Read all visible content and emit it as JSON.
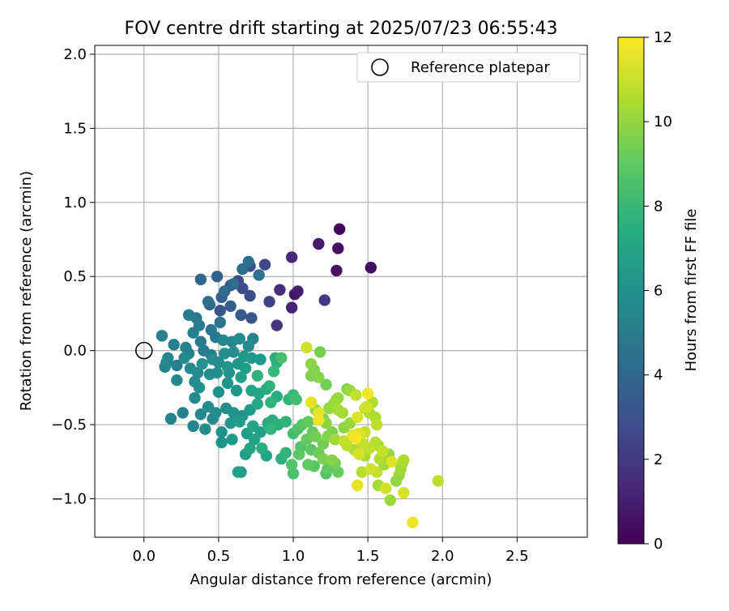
{
  "chart_data": {
    "type": "scatter",
    "title": "FOV centre drift starting at 2025/07/23 06:55:43",
    "xlabel": "Angular distance from reference (arcmin)",
    "ylabel": "Rotation from reference (arcmin)",
    "xlim": [
      -0.33,
      2.97
    ],
    "ylim": [
      -1.26,
      2.06
    ],
    "xticks": [
      "0.0",
      "0.5",
      "1.0",
      "1.5",
      "2.0",
      "2.5"
    ],
    "xtick_values": [
      0,
      0.5,
      1.0,
      1.5,
      2.0,
      2.5
    ],
    "yticks": [
      "−1.0",
      "−0.5",
      "0.0",
      "0.5",
      "1.0",
      "1.5",
      "2.0"
    ],
    "ytick_values": [
      -1.0,
      -0.5,
      0,
      0.5,
      1.0,
      1.5,
      2.0
    ],
    "grid": true,
    "legend": {
      "position": "top-right",
      "entries": [
        "Reference platepar"
      ]
    },
    "reference_point": {
      "x": 0.0,
      "y": 0.0
    },
    "colorbar": {
      "label": "Hours from first FF file",
      "colormap": "viridis",
      "range": [
        0,
        12
      ],
      "ticks": [
        "0",
        "2",
        "4",
        "6",
        "8",
        "10",
        "12"
      ],
      "tick_values": [
        0,
        2,
        4,
        6,
        8,
        10,
        12
      ]
    },
    "points": [
      {
        "x": 1.31,
        "y": 0.82,
        "h": 0.2
      },
      {
        "x": 1.3,
        "y": 0.69,
        "h": 0.5
      },
      {
        "x": 1.29,
        "y": 0.54,
        "h": 0.6
      },
      {
        "x": 1.52,
        "y": 0.56,
        "h": 0.4
      },
      {
        "x": 1.17,
        "y": 0.72,
        "h": 0.9
      },
      {
        "x": 1.03,
        "y": 0.4,
        "h": 1.0
      },
      {
        "x": 1.01,
        "y": 0.38,
        "h": 0.7
      },
      {
        "x": 0.99,
        "y": 0.29,
        "h": 1.1
      },
      {
        "x": 0.99,
        "y": 0.63,
        "h": 1.4
      },
      {
        "x": 0.91,
        "y": 0.41,
        "h": 1.6
      },
      {
        "x": 0.89,
        "y": 0.17,
        "h": 1.8
      },
      {
        "x": 1.21,
        "y": 0.34,
        "h": 2.0
      },
      {
        "x": 0.84,
        "y": 0.33,
        "h": 2.3
      },
      {
        "x": 0.81,
        "y": 0.58,
        "h": 2.5
      },
      {
        "x": 0.71,
        "y": 0.57,
        "h": 2.9
      },
      {
        "x": 0.71,
        "y": 0.37,
        "h": 2.7
      },
      {
        "x": 0.63,
        "y": 0.47,
        "h": 2.6
      },
      {
        "x": 0.58,
        "y": 0.44,
        "h": 3.0
      },
      {
        "x": 0.66,
        "y": 0.42,
        "h": 2.8
      },
      {
        "x": 0.72,
        "y": 0.22,
        "h": 3.2
      },
      {
        "x": 0.65,
        "y": 0.24,
        "h": 3.4
      },
      {
        "x": 0.51,
        "y": 0.27,
        "h": 3.1
      },
      {
        "x": 0.58,
        "y": 0.3,
        "h": 3.5
      },
      {
        "x": 0.52,
        "y": 0.36,
        "h": 3.6
      },
      {
        "x": 0.49,
        "y": 0.5,
        "h": 3.8
      },
      {
        "x": 0.44,
        "y": 0.31,
        "h": 3.9
      },
      {
        "x": 0.38,
        "y": 0.48,
        "h": 4.0
      },
      {
        "x": 0.54,
        "y": 0.4,
        "h": 4.1
      },
      {
        "x": 0.6,
        "y": 0.45,
        "h": 4.2
      },
      {
        "x": 0.66,
        "y": 0.55,
        "h": 4.3
      },
      {
        "x": 0.7,
        "y": 0.6,
        "h": 4.4
      },
      {
        "x": 0.77,
        "y": 0.51,
        "h": 4.5
      },
      {
        "x": 0.51,
        "y": 0.19,
        "h": 4.6
      },
      {
        "x": 0.45,
        "y": 0.14,
        "h": 4.7
      },
      {
        "x": 0.43,
        "y": 0.33,
        "h": 4.4
      },
      {
        "x": 0.35,
        "y": 0.22,
        "h": 4.9
      },
      {
        "x": 0.3,
        "y": 0.24,
        "h": 5.0
      },
      {
        "x": 0.37,
        "y": 0.17,
        "h": 5.1
      },
      {
        "x": 0.33,
        "y": 0.12,
        "h": 5.2
      },
      {
        "x": 0.12,
        "y": 0.1,
        "h": 5.3
      },
      {
        "x": 0.2,
        "y": 0.04,
        "h": 5.1
      },
      {
        "x": 0.28,
        "y": 0.02,
        "h": 5.4
      },
      {
        "x": 0.38,
        "y": 0.06,
        "h": 5.0
      },
      {
        "x": 0.48,
        "y": 0.09,
        "h": 4.8
      },
      {
        "x": 0.53,
        "y": 0.07,
        "h": 5.6
      },
      {
        "x": 0.59,
        "y": 0.06,
        "h": 5.5
      },
      {
        "x": 0.64,
        "y": 0.08,
        "h": 5.7
      },
      {
        "x": 0.73,
        "y": 0.08,
        "h": 5.4
      },
      {
        "x": 0.7,
        "y": 0.03,
        "h": 5.8
      },
      {
        "x": 0.6,
        "y": -0.01,
        "h": 5.9
      },
      {
        "x": 0.54,
        "y": -0.02,
        "h": 6.0
      },
      {
        "x": 0.45,
        "y": -0.03,
        "h": 5.2
      },
      {
        "x": 0.4,
        "y": 0.0,
        "h": 4.9
      },
      {
        "x": 0.3,
        "y": -0.02,
        "h": 5.3
      },
      {
        "x": 0.27,
        "y": -0.05,
        "h": 5.7
      },
      {
        "x": 0.16,
        "y": -0.05,
        "h": 5.5
      },
      {
        "x": 0.15,
        "y": -0.08,
        "h": 5.6
      },
      {
        "x": 0.14,
        "y": -0.11,
        "h": 5.4
      },
      {
        "x": 0.22,
        "y": -0.1,
        "h": 5.2
      },
      {
        "x": 0.31,
        "y": -0.12,
        "h": 5.8
      },
      {
        "x": 0.39,
        "y": -0.09,
        "h": 6.1
      },
      {
        "x": 0.46,
        "y": -0.06,
        "h": 6.0
      },
      {
        "x": 0.5,
        "y": -0.08,
        "h": 5.9
      },
      {
        "x": 0.56,
        "y": -0.11,
        "h": 6.2
      },
      {
        "x": 0.63,
        "y": -0.09,
        "h": 6.3
      },
      {
        "x": 0.67,
        "y": -0.04,
        "h": 6.4
      },
      {
        "x": 0.72,
        "y": -0.05,
        "h": 6.3
      },
      {
        "x": 0.78,
        "y": -0.06,
        "h": 6.5
      },
      {
        "x": 0.88,
        "y": -0.05,
        "h": 7.5
      },
      {
        "x": 0.89,
        "y": -0.08,
        "h": 7.6
      },
      {
        "x": 0.87,
        "y": -0.14,
        "h": 8.0
      },
      {
        "x": 0.76,
        "y": -0.17,
        "h": 7.7
      },
      {
        "x": 0.68,
        "y": -0.12,
        "h": 6.6
      },
      {
        "x": 0.65,
        "y": -0.18,
        "h": 6.7
      },
      {
        "x": 0.57,
        "y": -0.15,
        "h": 6.1
      },
      {
        "x": 0.49,
        "y": -0.15,
        "h": 6.0
      },
      {
        "x": 0.44,
        "y": -0.16,
        "h": 5.9
      },
      {
        "x": 0.36,
        "y": -0.15,
        "h": 5.6
      },
      {
        "x": 0.34,
        "y": -0.21,
        "h": 5.8
      },
      {
        "x": 0.22,
        "y": -0.2,
        "h": 5.5
      },
      {
        "x": 0.37,
        "y": -0.25,
        "h": 6.0
      },
      {
        "x": 0.56,
        "y": -0.22,
        "h": 6.2
      },
      {
        "x": 0.62,
        "y": -0.27,
        "h": 6.4
      },
      {
        "x": 0.5,
        "y": -0.28,
        "h": 6.1
      },
      {
        "x": 0.34,
        "y": -0.32,
        "h": 5.7
      },
      {
        "x": 0.72,
        "y": -0.27,
        "h": 7.0
      },
      {
        "x": 0.77,
        "y": -0.29,
        "h": 7.1
      },
      {
        "x": 0.82,
        "y": -0.26,
        "h": 7.3
      },
      {
        "x": 0.84,
        "y": -0.24,
        "h": 7.6
      },
      {
        "x": 0.76,
        "y": -0.36,
        "h": 7.2
      },
      {
        "x": 0.85,
        "y": -0.35,
        "h": 7.8
      },
      {
        "x": 0.89,
        "y": -0.31,
        "h": 7.4
      },
      {
        "x": 0.97,
        "y": -0.33,
        "h": 7.9
      },
      {
        "x": 1.0,
        "y": -0.3,
        "h": 8.1
      },
      {
        "x": 1.02,
        "y": -0.33,
        "h": 8.3
      },
      {
        "x": 0.43,
        "y": -0.38,
        "h": 5.8
      },
      {
        "x": 0.48,
        "y": -0.42,
        "h": 5.9
      },
      {
        "x": 0.55,
        "y": -0.39,
        "h": 6.0
      },
      {
        "x": 0.6,
        "y": -0.42,
        "h": 6.2
      },
      {
        "x": 0.66,
        "y": -0.44,
        "h": 6.1
      },
      {
        "x": 0.71,
        "y": -0.4,
        "h": 6.5
      },
      {
        "x": 0.64,
        "y": -0.48,
        "h": 6.6
      },
      {
        "x": 0.58,
        "y": -0.49,
        "h": 6.3
      },
      {
        "x": 0.46,
        "y": -0.46,
        "h": 5.7
      },
      {
        "x": 0.38,
        "y": -0.43,
        "h": 5.6
      },
      {
        "x": 0.33,
        "y": -0.51,
        "h": 5.5
      },
      {
        "x": 0.26,
        "y": -0.42,
        "h": 5.3
      },
      {
        "x": 0.18,
        "y": -0.46,
        "h": 5.4
      },
      {
        "x": 0.41,
        "y": -0.53,
        "h": 5.8
      },
      {
        "x": 0.52,
        "y": -0.55,
        "h": 6.0
      },
      {
        "x": 0.52,
        "y": -0.62,
        "h": 6.2
      },
      {
        "x": 0.59,
        "y": -0.6,
        "h": 6.4
      },
      {
        "x": 0.69,
        "y": -0.56,
        "h": 6.6
      },
      {
        "x": 0.73,
        "y": -0.51,
        "h": 7.0
      },
      {
        "x": 0.78,
        "y": -0.55,
        "h": 6.8
      },
      {
        "x": 0.83,
        "y": -0.49,
        "h": 7.2
      },
      {
        "x": 0.86,
        "y": -0.47,
        "h": 7.4
      },
      {
        "x": 0.9,
        "y": -0.5,
        "h": 7.6
      },
      {
        "x": 0.95,
        "y": -0.48,
        "h": 7.8
      },
      {
        "x": 0.74,
        "y": -0.6,
        "h": 6.9
      },
      {
        "x": 0.71,
        "y": -0.66,
        "h": 7.1
      },
      {
        "x": 0.79,
        "y": -0.66,
        "h": 7.3
      },
      {
        "x": 0.82,
        "y": -0.71,
        "h": 7.0
      },
      {
        "x": 0.68,
        "y": -0.7,
        "h": 6.8
      },
      {
        "x": 0.63,
        "y": -0.82,
        "h": 6.7
      },
      {
        "x": 0.65,
        "y": -0.82,
        "h": 6.5
      },
      {
        "x": 0.92,
        "y": -0.73,
        "h": 7.5
      },
      {
        "x": 0.95,
        "y": -0.69,
        "h": 7.8
      },
      {
        "x": 0.99,
        "y": -0.77,
        "h": 8.7
      },
      {
        "x": 1.0,
        "y": -0.83,
        "h": 8.5
      },
      {
        "x": 1.04,
        "y": -0.7,
        "h": 8.9
      },
      {
        "x": 1.0,
        "y": -0.56,
        "h": 8.3
      },
      {
        "x": 1.03,
        "y": -0.53,
        "h": 8.6
      },
      {
        "x": 1.06,
        "y": -0.5,
        "h": 8.8
      },
      {
        "x": 1.1,
        "y": -0.48,
        "h": 9.0
      },
      {
        "x": 1.13,
        "y": -0.55,
        "h": 9.2
      },
      {
        "x": 1.15,
        "y": -0.58,
        "h": 9.4
      },
      {
        "x": 1.09,
        "y": -0.6,
        "h": 9.1
      },
      {
        "x": 1.05,
        "y": -0.65,
        "h": 8.7
      },
      {
        "x": 1.12,
        "y": -0.67,
        "h": 8.9
      },
      {
        "x": 1.17,
        "y": -0.69,
        "h": 9.3
      },
      {
        "x": 1.1,
        "y": -0.77,
        "h": 9.0
      },
      {
        "x": 1.14,
        "y": -0.78,
        "h": 8.8
      },
      {
        "x": 1.2,
        "y": -0.73,
        "h": 9.6
      },
      {
        "x": 1.23,
        "y": -0.8,
        "h": 9.0
      },
      {
        "x": 1.22,
        "y": -0.83,
        "h": 8.7
      },
      {
        "x": 1.26,
        "y": -0.74,
        "h": 9.8
      },
      {
        "x": 1.28,
        "y": -0.76,
        "h": 9.4
      },
      {
        "x": 1.3,
        "y": -0.82,
        "h": 9.2
      },
      {
        "x": 1.2,
        "y": -0.63,
        "h": 9.5
      },
      {
        "x": 1.23,
        "y": -0.58,
        "h": 9.7
      },
      {
        "x": 1.26,
        "y": -0.55,
        "h": 9.6
      },
      {
        "x": 1.22,
        "y": -0.49,
        "h": 9.9
      },
      {
        "x": 1.2,
        "y": -0.46,
        "h": 9.5
      },
      {
        "x": 1.17,
        "y": -0.42,
        "h": 11.5
      },
      {
        "x": 1.17,
        "y": -0.47,
        "h": 11.7
      },
      {
        "x": 1.24,
        "y": -0.39,
        "h": 10.1
      },
      {
        "x": 1.27,
        "y": -0.36,
        "h": 10.2
      },
      {
        "x": 1.29,
        "y": -0.33,
        "h": 10.0
      },
      {
        "x": 1.3,
        "y": -0.4,
        "h": 10.4
      },
      {
        "x": 1.33,
        "y": -0.42,
        "h": 10.3
      },
      {
        "x": 1.36,
        "y": -0.26,
        "h": 9.8
      },
      {
        "x": 1.38,
        "y": -0.27,
        "h": 10.2
      },
      {
        "x": 1.42,
        "y": -0.3,
        "h": 10.9
      },
      {
        "x": 1.5,
        "y": -0.29,
        "h": 11.8
      },
      {
        "x": 1.48,
        "y": -0.39,
        "h": 10.7
      },
      {
        "x": 1.51,
        "y": -0.42,
        "h": 10.6
      },
      {
        "x": 1.55,
        "y": -0.45,
        "h": 10.5
      },
      {
        "x": 1.56,
        "y": -0.5,
        "h": 10.8
      },
      {
        "x": 1.49,
        "y": -0.38,
        "h": 11.2
      },
      {
        "x": 1.38,
        "y": -0.49,
        "h": 10.1
      },
      {
        "x": 1.34,
        "y": -0.52,
        "h": 9.9
      },
      {
        "x": 1.34,
        "y": -0.61,
        "h": 11.0
      },
      {
        "x": 1.36,
        "y": -0.64,
        "h": 10.8
      },
      {
        "x": 1.4,
        "y": -0.57,
        "h": 11.6
      },
      {
        "x": 1.42,
        "y": -0.59,
        "h": 11.9
      },
      {
        "x": 1.44,
        "y": -0.56,
        "h": 11.4
      },
      {
        "x": 1.47,
        "y": -0.63,
        "h": 10.9
      },
      {
        "x": 1.41,
        "y": -0.67,
        "h": 10.6
      },
      {
        "x": 1.44,
        "y": -0.7,
        "h": 11.3
      },
      {
        "x": 1.48,
        "y": -0.71,
        "h": 10.5
      },
      {
        "x": 1.51,
        "y": -0.66,
        "h": 10.8
      },
      {
        "x": 1.55,
        "y": -0.62,
        "h": 10.7
      },
      {
        "x": 1.57,
        "y": -0.64,
        "h": 10.4
      },
      {
        "x": 1.6,
        "y": -0.68,
        "h": 11.0
      },
      {
        "x": 1.58,
        "y": -0.73,
        "h": 10.6
      },
      {
        "x": 1.61,
        "y": -0.77,
        "h": 10.3
      },
      {
        "x": 1.56,
        "y": -0.82,
        "h": 10.9
      },
      {
        "x": 1.52,
        "y": -0.8,
        "h": 11.1
      },
      {
        "x": 1.46,
        "y": -0.82,
        "h": 10.7
      },
      {
        "x": 1.43,
        "y": -0.91,
        "h": 11.6
      },
      {
        "x": 1.57,
        "y": -0.91,
        "h": 10.4
      },
      {
        "x": 1.62,
        "y": -0.93,
        "h": 11.2
      },
      {
        "x": 1.65,
        "y": -1.01,
        "h": 10.2
      },
      {
        "x": 1.69,
        "y": -0.88,
        "h": 10.0
      },
      {
        "x": 1.72,
        "y": -0.8,
        "h": 10.3
      },
      {
        "x": 1.73,
        "y": -0.76,
        "h": 10.2
      },
      {
        "x": 1.74,
        "y": -0.74,
        "h": 10.5
      },
      {
        "x": 1.66,
        "y": -0.75,
        "h": 11.4
      },
      {
        "x": 1.71,
        "y": -0.84,
        "h": 10.1
      },
      {
        "x": 1.74,
        "y": -0.96,
        "h": 11.3
      },
      {
        "x": 1.8,
        "y": -1.16,
        "h": 11.7
      },
      {
        "x": 1.97,
        "y": -0.88,
        "h": 10.8
      },
      {
        "x": 1.12,
        "y": -0.35,
        "h": 11.6
      },
      {
        "x": 1.09,
        "y": 0.02,
        "h": 11.2
      },
      {
        "x": 1.18,
        "y": -0.01,
        "h": 9.5
      },
      {
        "x": 1.12,
        "y": -0.09,
        "h": 9.9
      },
      {
        "x": 1.14,
        "y": -0.13,
        "h": 9.7
      },
      {
        "x": 1.12,
        "y": -0.17,
        "h": 9.6
      },
      {
        "x": 1.17,
        "y": -0.18,
        "h": 9.8
      },
      {
        "x": 1.22,
        "y": -0.23,
        "h": 9.4
      },
      {
        "x": 1.3,
        "y": -0.32,
        "h": 10.1
      },
      {
        "x": 0.92,
        "y": -0.05,
        "h": 8.4
      },
      {
        "x": 0.85,
        "y": -0.53,
        "h": 7.9
      },
      {
        "x": 1.15,
        "y": -0.4,
        "h": 10.0
      },
      {
        "x": 1.28,
        "y": -0.6,
        "h": 10.3
      },
      {
        "x": 1.53,
        "y": -0.35,
        "h": 10.6
      },
      {
        "x": 1.43,
        "y": -0.45,
        "h": 11.4
      },
      {
        "x": 1.64,
        "y": -0.7,
        "h": 10.1
      },
      {
        "x": 1.48,
        "y": -0.55,
        "h": 11.0
      }
    ]
  }
}
